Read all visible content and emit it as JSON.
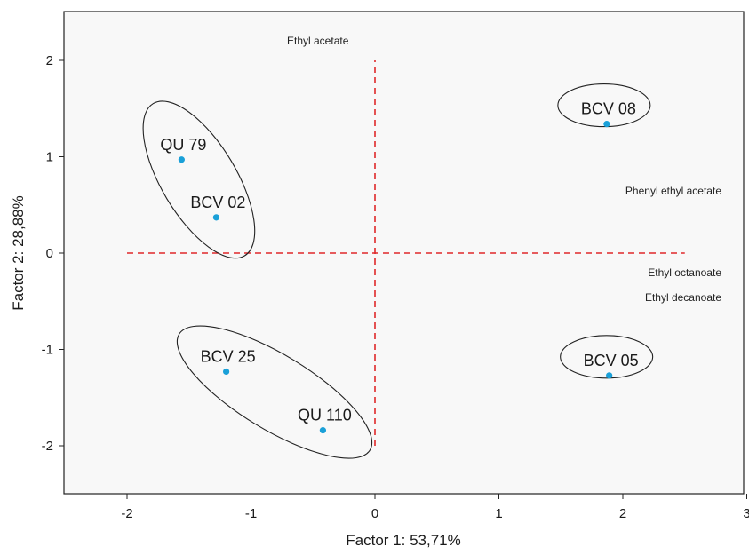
{
  "chart_data": {
    "type": "scatter",
    "title": "",
    "xlabel": "Factor 1: 53,71%",
    "ylabel": "Factor 2: 28,88%",
    "xlim": [
      -2.5,
      3
    ],
    "ylim": [
      -2.5,
      2.4
    ],
    "xticks": [
      -2,
      -1,
      0,
      1,
      2,
      3
    ],
    "yticks": [
      2,
      1,
      0,
      -1,
      -2
    ],
    "x_tick_labels": [
      "-2",
      "-1",
      "0",
      "1",
      "2",
      "3"
    ],
    "y_tick_labels": [
      "2",
      "1",
      "0",
      "-1",
      "-2"
    ],
    "grid": false,
    "point_color": "#1aa0d8",
    "reference_line_color": "#e0282a",
    "plot_background": "#f8f8f8",
    "points": [
      {
        "label": "QU 79",
        "x": -1.56,
        "y": 0.97
      },
      {
        "label": "BCV 02",
        "x": -1.28,
        "y": 0.37
      },
      {
        "label": "BCV 08",
        "x": 1.87,
        "y": 1.34
      },
      {
        "label": "BCV 25",
        "x": -1.2,
        "y": -1.23
      },
      {
        "label": "QU 110",
        "x": -0.42,
        "y": -1.84
      },
      {
        "label": "BCV 05",
        "x": 1.89,
        "y": -1.27
      }
    ],
    "groups": [
      {
        "members": [
          "QU 79",
          "BCV 02"
        ]
      },
      {
        "members": [
          "BCV 08"
        ]
      },
      {
        "members": [
          "BCV 25",
          "QU 110"
        ]
      },
      {
        "members": [
          "BCV 05"
        ]
      }
    ],
    "reference_lines": {
      "horizontal": {
        "y": 0,
        "x_from": -2,
        "x_to": 2.5
      },
      "vertical": {
        "x": 0,
        "y_from": -2,
        "y_to": 2
      }
    },
    "variable_annotations": [
      "Ethyl acetate",
      "Phenyl ethyl acetate",
      "Ethyl octanoate",
      "Ethyl decanoate"
    ]
  }
}
